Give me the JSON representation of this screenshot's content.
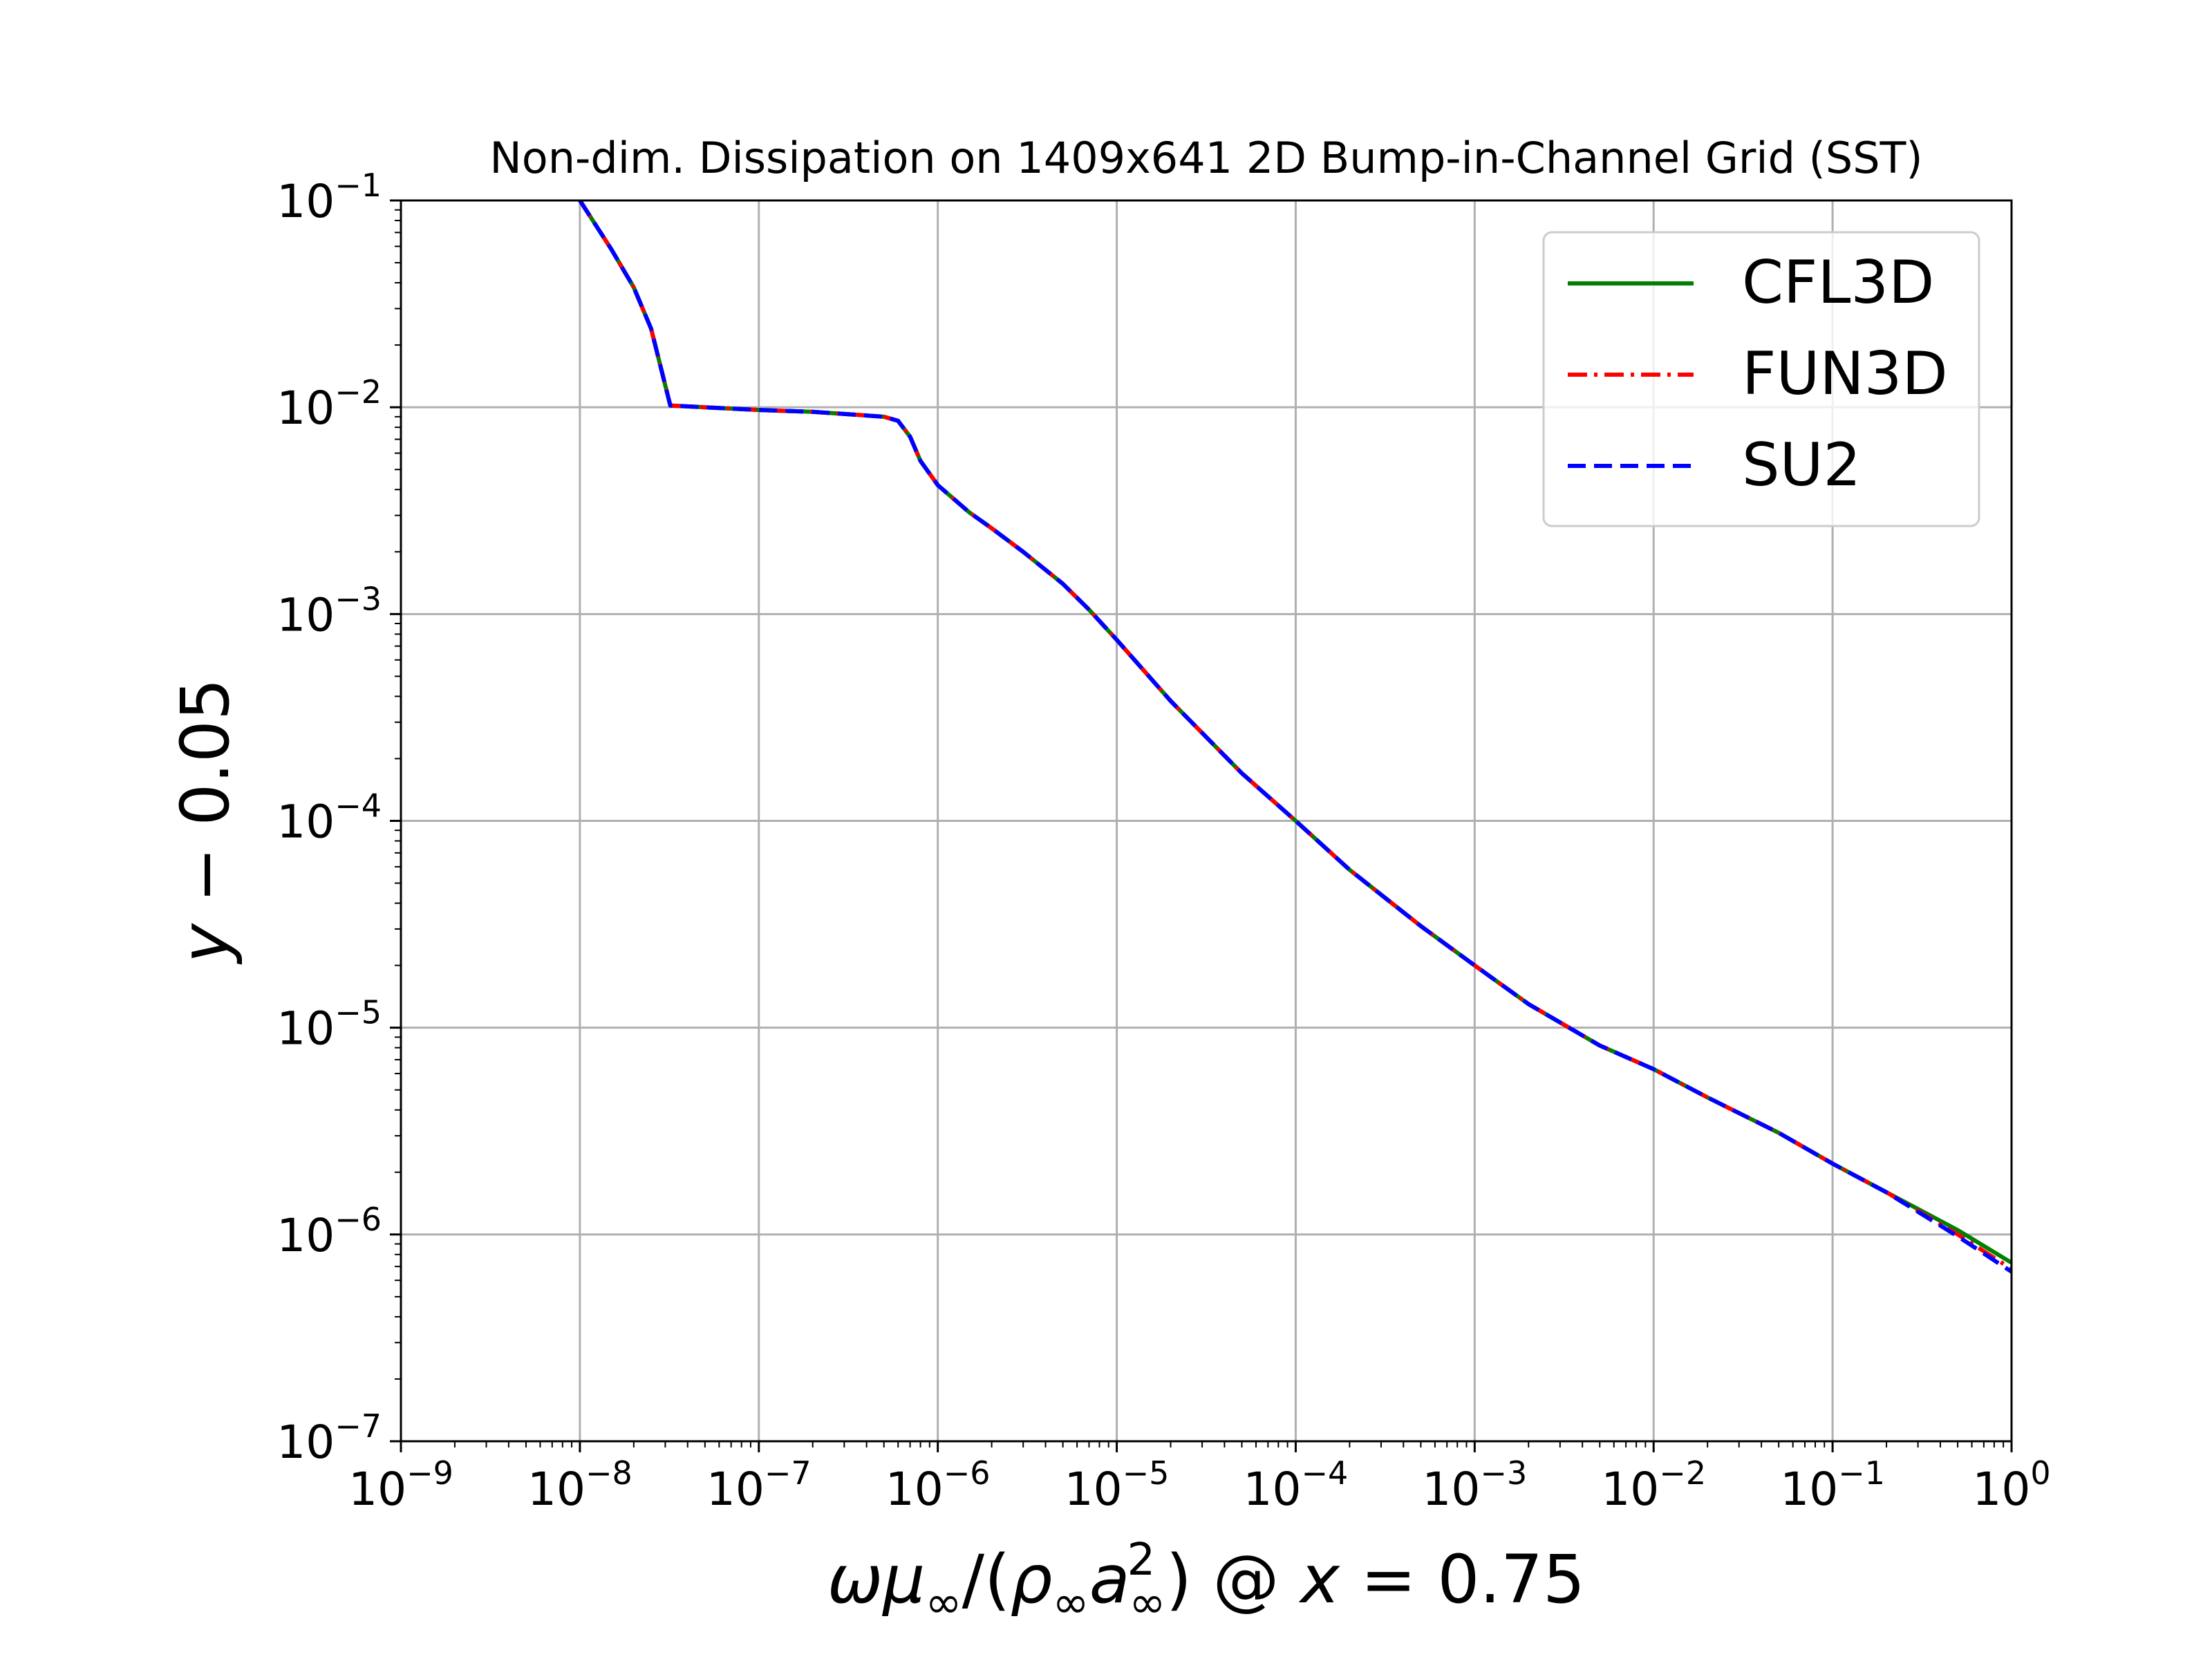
{
  "chart_data": {
    "type": "line",
    "title": "Non-dim. Dissipation on 1409x641 2D Bump-in-Channel Grid (SST)",
    "xlabel": {
      "omega": "ω",
      "mu": "μ",
      "inf": "∞",
      "slash": "/(",
      "rho": "ρ",
      "a": "a",
      "sq": "2",
      "close": ")",
      "at": " @ ",
      "x": "x",
      "eq": " = 0.75"
    },
    "ylabel": {
      "y": "y",
      "rest": " − 0.05"
    },
    "xscale": "log",
    "yscale": "log",
    "xlim": [
      1e-09,
      1
    ],
    "ylim": [
      1e-07,
      0.1
    ],
    "grid": true,
    "legend_position": "top-right",
    "x_ticks": [
      {
        "base": "10",
        "exp": "−9"
      },
      {
        "base": "10",
        "exp": "−8"
      },
      {
        "base": "10",
        "exp": "−7"
      },
      {
        "base": "10",
        "exp": "−6"
      },
      {
        "base": "10",
        "exp": "−5"
      },
      {
        "base": "10",
        "exp": "−4"
      },
      {
        "base": "10",
        "exp": "−3"
      },
      {
        "base": "10",
        "exp": "−2"
      },
      {
        "base": "10",
        "exp": "−1"
      },
      {
        "base": "10",
        "exp": "0"
      }
    ],
    "y_ticks": [
      {
        "base": "10",
        "exp": "−7"
      },
      {
        "base": "10",
        "exp": "−6"
      },
      {
        "base": "10",
        "exp": "−5"
      },
      {
        "base": "10",
        "exp": "−4"
      },
      {
        "base": "10",
        "exp": "−3"
      },
      {
        "base": "10",
        "exp": "−2"
      },
      {
        "base": "10",
        "exp": "−1"
      }
    ],
    "x": [
      1e-08,
      1.5e-08,
      2e-08,
      2.5e-08,
      3.2e-08,
      5e-08,
      1e-07,
      2e-07,
      3.5e-07,
      5e-07,
      6e-07,
      7e-07,
      8e-07,
      1e-06,
      1.5e-06,
      2e-06,
      3e-06,
      5e-06,
      7e-06,
      1e-05,
      2e-05,
      5e-05,
      0.0001,
      0.0002,
      0.0005,
      0.001,
      0.002,
      0.005,
      0.01,
      0.02,
      0.05,
      0.1,
      0.2,
      0.5,
      1
    ],
    "series": [
      {
        "name": "CFL3D",
        "color": "#008000",
        "dash": "solid",
        "y": [
          0.1,
          0.058,
          0.038,
          0.024,
          0.0102,
          0.01,
          0.0097,
          0.0095,
          0.0092,
          0.009,
          0.0086,
          0.0072,
          0.0055,
          0.0042,
          0.0031,
          0.0026,
          0.002,
          0.0014,
          0.00105,
          0.00075,
          0.00038,
          0.00017,
          0.0001,
          5.8e-05,
          3.1e-05,
          2e-05,
          1.3e-05,
          8.2e-06,
          6.3e-06,
          4.6e-06,
          3.1e-06,
          2.2e-06,
          1.6e-06,
          1.05e-06,
          7.3e-07
        ]
      },
      {
        "name": "FUN3D",
        "color": "#ff0000",
        "dash": "dashdot",
        "y": [
          0.1,
          0.058,
          0.038,
          0.024,
          0.0102,
          0.01,
          0.0097,
          0.0095,
          0.0092,
          0.009,
          0.0086,
          0.0072,
          0.0055,
          0.0042,
          0.0031,
          0.0026,
          0.002,
          0.0014,
          0.00105,
          0.00075,
          0.00038,
          0.00017,
          0.0001,
          5.8e-05,
          3.1e-05,
          2e-05,
          1.3e-05,
          8.2e-06,
          6.3e-06,
          4.6e-06,
          3.1e-06,
          2.2e-06,
          1.6e-06,
          1e-06,
          6.8e-07
        ]
      },
      {
        "name": "SU2",
        "color": "#0000ff",
        "dash": "dashed",
        "y": [
          0.1,
          0.058,
          0.038,
          0.024,
          0.0102,
          0.01,
          0.0097,
          0.0095,
          0.0092,
          0.009,
          0.0086,
          0.0072,
          0.0055,
          0.0042,
          0.0031,
          0.0026,
          0.002,
          0.0014,
          0.00105,
          0.00075,
          0.00038,
          0.00017,
          0.0001,
          5.8e-05,
          3.1e-05,
          2e-05,
          1.3e-05,
          8.2e-06,
          6.3e-06,
          4.6e-06,
          3.1e-06,
          2.2e-06,
          1.6e-06,
          9.8e-07,
          6.6e-07
        ]
      }
    ]
  }
}
